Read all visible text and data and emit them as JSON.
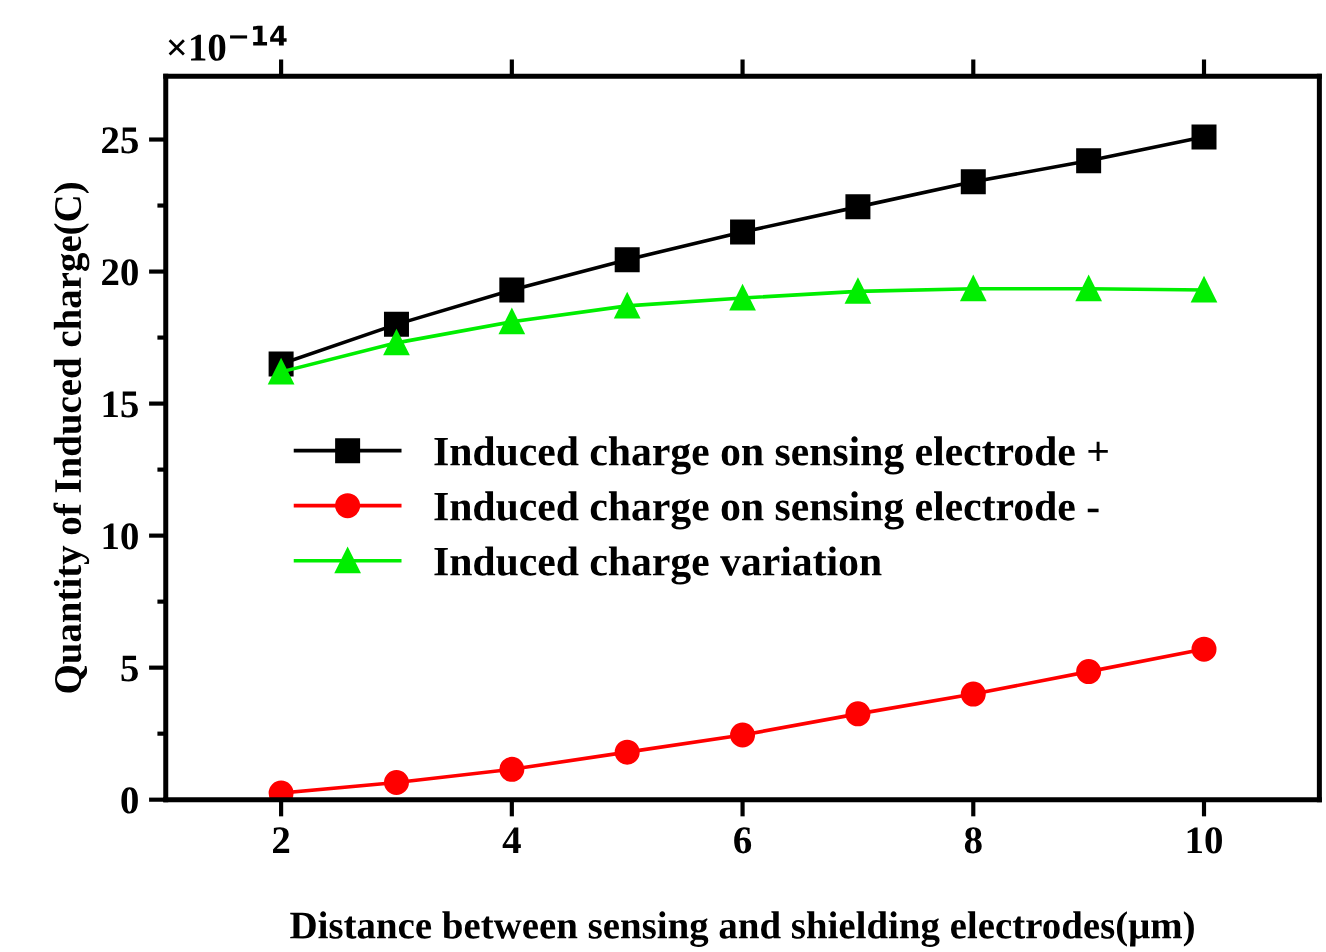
{
  "chart_data": {
    "type": "line",
    "xlabel": "Distance between sensing and shielding electrodes(μm)",
    "ylabel": "Quantity of Induced charge(C)",
    "annotations": [
      "×10$^{−14}$"
    ],
    "x": [
      2,
      3,
      4,
      5,
      6,
      7,
      8,
      9,
      10
    ],
    "xlim": [
      1,
      11
    ],
    "xticks": [
      2,
      4,
      6,
      8,
      10
    ],
    "ylim": [
      0,
      27.4
    ],
    "yticks": [
      0,
      5,
      10,
      15,
      20,
      25
    ],
    "grid": false,
    "legend": "left",
    "series": [
      {
        "name": "Induced charge on sensing electrode +",
        "color": "#000000",
        "marker": "square",
        "values": [
          16.5,
          18.0,
          19.3,
          20.45,
          21.5,
          22.45,
          23.4,
          24.2,
          25.1
        ]
      },
      {
        "name": "Induced charge on sensing electrode -",
        "color": "#ff0000",
        "marker": "circle",
        "values": [
          0.25,
          0.65,
          1.15,
          1.8,
          2.45,
          3.25,
          4.0,
          4.85,
          5.7
        ]
      },
      {
        "name": "Induced charge variation",
        "color": "#00ee00",
        "marker": "triangle",
        "values": [
          16.2,
          17.3,
          18.1,
          18.7,
          19.0,
          19.25,
          19.35,
          19.35,
          19.3
        ]
      }
    ]
  }
}
